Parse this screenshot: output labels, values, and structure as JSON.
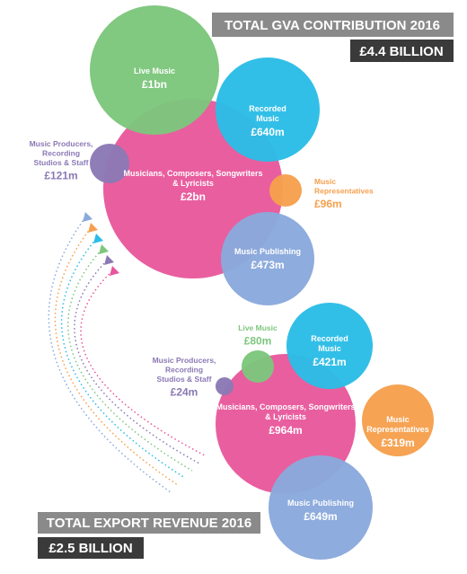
{
  "gva": {
    "title": "TOTAL GVA CONTRIBUTION 2016",
    "total": "£4.4 BILLION",
    "bubbles": [
      {
        "label": [
          "Musicians, Composers, Songwriters",
          "& Lyricists"
        ],
        "value": "£2bn"
      },
      {
        "label": [
          "Live Music"
        ],
        "value": "£1bn"
      },
      {
        "label": [
          "Recorded",
          "Music"
        ],
        "value": "£640m"
      },
      {
        "label": [
          "Music Producers,",
          "Recording",
          "Studios & Staff"
        ],
        "value": "£121m"
      },
      {
        "label": [
          "Music",
          "Representatives"
        ],
        "value": "£96m"
      },
      {
        "label": [
          "Music Publishing"
        ],
        "value": "£473m"
      }
    ]
  },
  "export": {
    "title": "TOTAL EXPORT REVENUE 2016",
    "total": "£2.5 BILLION",
    "bubbles": [
      {
        "label": [
          "Musicians, Composers, Songwriters",
          "& Lyricists"
        ],
        "value": "£964m"
      },
      {
        "label": [
          "Live Music"
        ],
        "value": "£80m"
      },
      {
        "label": [
          "Recorded",
          "Music"
        ],
        "value": "£421m"
      },
      {
        "label": [
          "Music Producers,",
          "Recording",
          "Studios & Staff"
        ],
        "value": "£24m"
      },
      {
        "label": [
          "Music",
          "Representatives"
        ],
        "value": "£319m"
      },
      {
        "label": [
          "Music Publishing"
        ],
        "value": "£649m"
      }
    ]
  }
}
